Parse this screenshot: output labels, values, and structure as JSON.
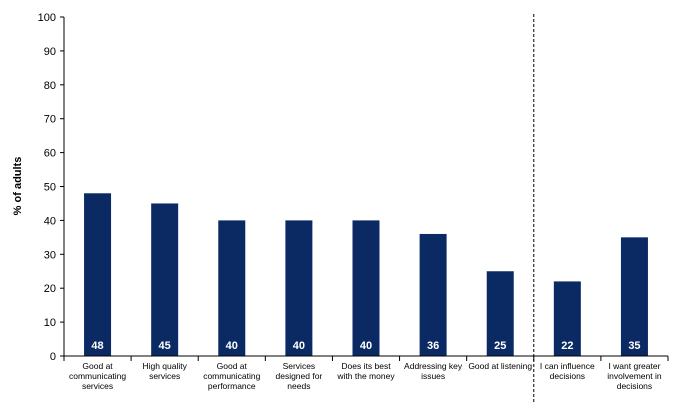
{
  "chart_data": {
    "type": "bar",
    "ylabel": "% of adults",
    "xlabel": "",
    "ylim": [
      0,
      100
    ],
    "yticks": [
      0,
      10,
      20,
      30,
      40,
      50,
      60,
      70,
      80,
      90,
      100
    ],
    "grid": false,
    "legend": "none",
    "bar_color": "#0b2a63",
    "categories": [
      [
        "Good at",
        "communicating",
        "services"
      ],
      [
        "High quality",
        "services"
      ],
      [
        "Good at",
        "communicating",
        "performance"
      ],
      [
        "Services",
        "designed for",
        "needs"
      ],
      [
        "Does its best",
        "with the money"
      ],
      [
        "Addressing key",
        "issues"
      ],
      [
        "Good at listening"
      ],
      [
        "I can influence",
        "decisions"
      ],
      [
        "I want greater",
        "involvement in",
        "decisions"
      ]
    ],
    "values": [
      48,
      45,
      40,
      40,
      40,
      36,
      25,
      22,
      35
    ],
    "value_labels": [
      "48",
      "45",
      "40",
      "40",
      "40",
      "36",
      "25",
      "22",
      "35"
    ],
    "separator_after_index": 6
  }
}
